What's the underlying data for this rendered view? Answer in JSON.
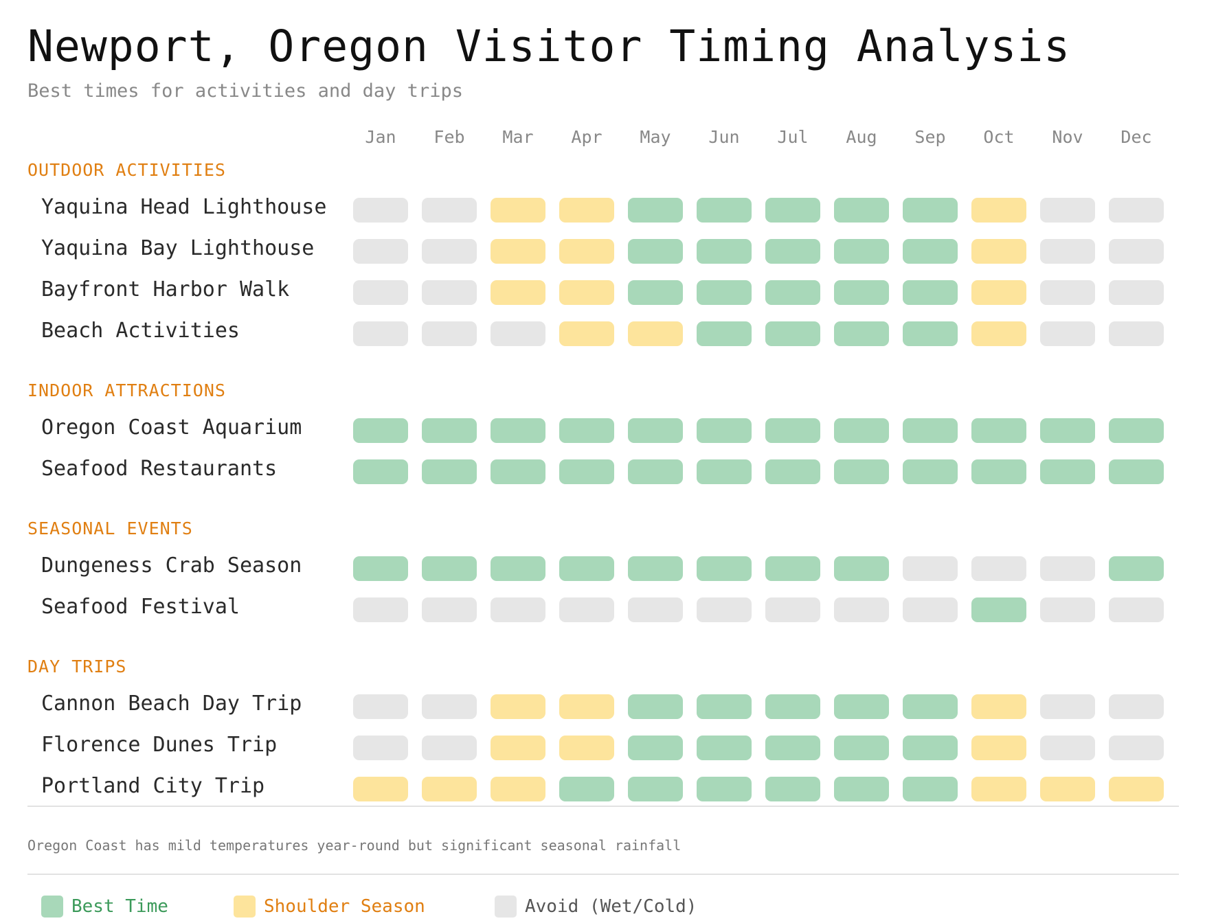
{
  "title": "Newport, Oregon Visitor Timing Analysis",
  "subtitle": "Best times for activities and day trips",
  "footnote": "Oregon Coast has mild temperatures year-round but significant seasonal rainfall",
  "colors": {
    "best": "#a8d8b9",
    "shoulder": "#fde49c",
    "avoid": "#e6e6e6",
    "section": "#e07f12",
    "legend_best_text": "#3c9a5a",
    "legend_shoulder_text": "#e07f12",
    "legend_avoid_text": "#555555"
  },
  "chart_data": {
    "type": "heatmap",
    "months": [
      "Jan",
      "Feb",
      "Mar",
      "Apr",
      "May",
      "Jun",
      "Jul",
      "Aug",
      "Sep",
      "Oct",
      "Nov",
      "Dec"
    ],
    "legend": [
      {
        "key": "best",
        "label": "Best Time"
      },
      {
        "key": "shoulder",
        "label": "Shoulder Season"
      },
      {
        "key": "avoid",
        "label": "Avoid (Wet/Cold)"
      }
    ],
    "sections": [
      {
        "name": "OUTDOOR ACTIVITIES",
        "rows": [
          {
            "label": "Yaquina Head Lighthouse",
            "values": [
              "avoid",
              "avoid",
              "shoulder",
              "shoulder",
              "best",
              "best",
              "best",
              "best",
              "best",
              "shoulder",
              "avoid",
              "avoid"
            ]
          },
          {
            "label": "Yaquina Bay Lighthouse",
            "values": [
              "avoid",
              "avoid",
              "shoulder",
              "shoulder",
              "best",
              "best",
              "best",
              "best",
              "best",
              "shoulder",
              "avoid",
              "avoid"
            ]
          },
          {
            "label": "Bayfront Harbor Walk",
            "values": [
              "avoid",
              "avoid",
              "shoulder",
              "shoulder",
              "best",
              "best",
              "best",
              "best",
              "best",
              "shoulder",
              "avoid",
              "avoid"
            ]
          },
          {
            "label": "Beach Activities",
            "values": [
              "avoid",
              "avoid",
              "avoid",
              "shoulder",
              "shoulder",
              "best",
              "best",
              "best",
              "best",
              "shoulder",
              "avoid",
              "avoid"
            ]
          }
        ]
      },
      {
        "name": "INDOOR ATTRACTIONS",
        "rows": [
          {
            "label": "Oregon Coast Aquarium",
            "values": [
              "best",
              "best",
              "best",
              "best",
              "best",
              "best",
              "best",
              "best",
              "best",
              "best",
              "best",
              "best"
            ]
          },
          {
            "label": "Seafood Restaurants",
            "values": [
              "best",
              "best",
              "best",
              "best",
              "best",
              "best",
              "best",
              "best",
              "best",
              "best",
              "best",
              "best"
            ]
          }
        ]
      },
      {
        "name": "SEASONAL EVENTS",
        "rows": [
          {
            "label": "Dungeness Crab Season",
            "values": [
              "best",
              "best",
              "best",
              "best",
              "best",
              "best",
              "best",
              "best",
              "avoid",
              "avoid",
              "avoid",
              "best"
            ]
          },
          {
            "label": "Seafood Festival",
            "values": [
              "avoid",
              "avoid",
              "avoid",
              "avoid",
              "avoid",
              "avoid",
              "avoid",
              "avoid",
              "avoid",
              "best",
              "avoid",
              "avoid"
            ]
          }
        ]
      },
      {
        "name": "DAY TRIPS",
        "rows": [
          {
            "label": "Cannon Beach Day Trip",
            "values": [
              "avoid",
              "avoid",
              "shoulder",
              "shoulder",
              "best",
              "best",
              "best",
              "best",
              "best",
              "shoulder",
              "avoid",
              "avoid"
            ]
          },
          {
            "label": "Florence Dunes Trip",
            "values": [
              "avoid",
              "avoid",
              "shoulder",
              "shoulder",
              "best",
              "best",
              "best",
              "best",
              "best",
              "shoulder",
              "avoid",
              "avoid"
            ]
          },
          {
            "label": "Portland City Trip",
            "values": [
              "shoulder",
              "shoulder",
              "shoulder",
              "best",
              "best",
              "best",
              "best",
              "best",
              "best",
              "shoulder",
              "shoulder",
              "shoulder"
            ]
          }
        ]
      }
    ]
  }
}
